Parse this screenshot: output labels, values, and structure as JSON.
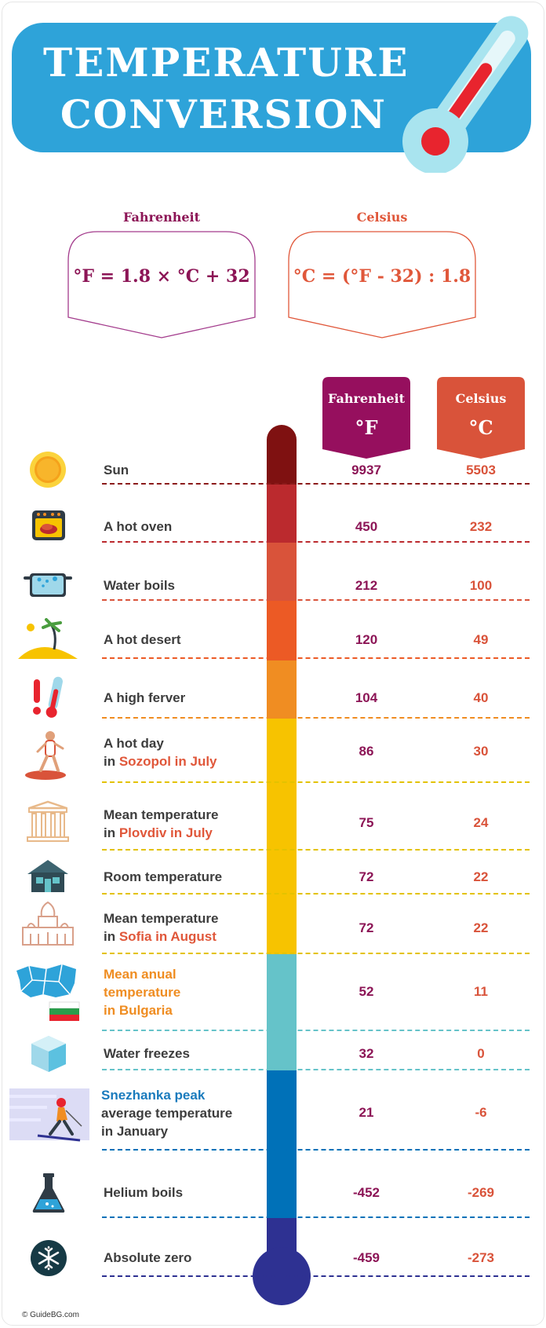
{
  "title_line1": "TEMPERATURE",
  "title_line2": "CONVERSION",
  "formulas": {
    "fahrenheit_label": "Fahrenheit",
    "fahrenheit_formula": "°F = 1.8 × °C + 32",
    "celsius_label": "Celsius",
    "celsius_formula": "°C = (°F - 32) : 1.8"
  },
  "columns": {
    "fahrenheit_name": "Fahrenheit",
    "fahrenheit_unit": "°F",
    "celsius_name": "Celsius",
    "celsius_unit": "°C"
  },
  "colors": {
    "banner": "#2ea3d9",
    "fahrenheit": "#8c1556",
    "celsius": "#d9533a"
  },
  "rows": [
    {
      "icon": "sun-icon",
      "label": "Sun",
      "f": "9937",
      "c": "5503"
    },
    {
      "icon": "oven-icon",
      "label": "A hot oven",
      "f": "450",
      "c": "232"
    },
    {
      "icon": "pot-icon",
      "label": "Water boils",
      "f": "212",
      "c": "100"
    },
    {
      "icon": "desert-icon",
      "label": "A hot desert",
      "f": "120",
      "c": "49"
    },
    {
      "icon": "fever-icon",
      "label": "A high ferver",
      "f": "104",
      "c": "40"
    },
    {
      "icon": "runner-icon",
      "label_a": "A hot day",
      "label_b": "in ",
      "label_hl": "Sozopol in July",
      "f": "86",
      "c": "30"
    },
    {
      "icon": "ruins-icon",
      "label_a": "Mean temperature",
      "label_b": "in ",
      "label_hl": "Plovdiv in July",
      "f": "75",
      "c": "24"
    },
    {
      "icon": "house-icon",
      "label": "Room temperature",
      "f": "72",
      "c": "22"
    },
    {
      "icon": "cathedral-icon",
      "label_a": "Mean temperature",
      "label_b": "in ",
      "label_hl": "Sofia in August",
      "f": "72",
      "c": "22"
    },
    {
      "icon": "bulgaria-map-icon",
      "label_a": "Mean anual",
      "label_b": "temperature",
      "label_c": "in Bulgaria",
      "f": "52",
      "c": "11"
    },
    {
      "icon": "ice-cube-icon",
      "label": "Water freezes",
      "f": "32",
      "c": "0"
    },
    {
      "icon": "skier-icon",
      "label_hl": "Snezhanka peak",
      "label_a": "average temperature",
      "label_b": "in January",
      "f": "21",
      "c": "-6"
    },
    {
      "icon": "flask-icon",
      "label": "Helium boils",
      "f": "-452",
      "c": "-269"
    },
    {
      "icon": "snowflake-icon",
      "label": "Absolute zero",
      "f": "-459",
      "c": "-273"
    }
  ],
  "footer": "© GuideBG.com"
}
